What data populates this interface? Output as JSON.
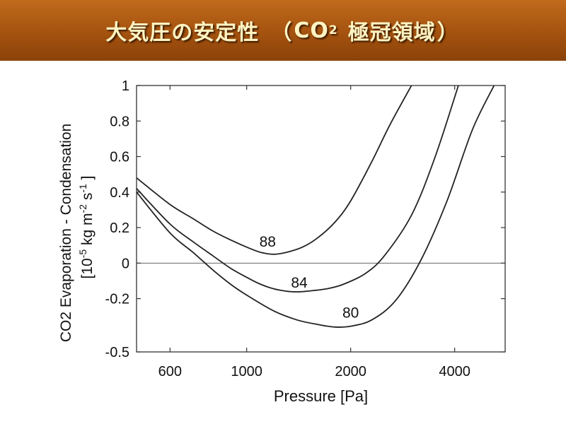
{
  "header": {
    "title_main": "大気圧の安定性",
    "title_paren_open": "（",
    "title_co": "CO",
    "title_sub": "2",
    "title_rest": "極冠領域",
    "title_paren_close": "）"
  },
  "colors": {
    "banner": "#a4520f",
    "title_text": "#fff3c2",
    "curve": "#222222"
  },
  "chart_data": {
    "type": "line",
    "xscale": "log",
    "xlim": [
      480,
      5600
    ],
    "ylim": [
      -0.5,
      1
    ],
    "xlabel": "Pressure [Pa]",
    "ylabel_line1": "CO2 Evaporation - Condensation",
    "ylabel_line2_parts": [
      "[10",
      "-5",
      " kg m",
      "-2",
      " s",
      "-1",
      " ]"
    ],
    "xticks": [
      {
        "value": 600,
        "label": "600"
      },
      {
        "value": 1000,
        "label": "1000"
      },
      {
        "value": 2000,
        "label": "2000"
      },
      {
        "value": 4000,
        "label": "4000"
      }
    ],
    "yticks": [
      {
        "value": 1,
        "label": "1"
      },
      {
        "value": 0.8,
        "label": "0.8"
      },
      {
        "value": 0.6,
        "label": "0.6"
      },
      {
        "value": 0.4,
        "label": "0.4"
      },
      {
        "value": 0.2,
        "label": "0.2"
      },
      {
        "value": 0,
        "label": "0"
      },
      {
        "value": -0.2,
        "label": "-0.2"
      },
      {
        "value": -0.5,
        "label": "-0.5"
      }
    ],
    "zero_line": true,
    "series": [
      {
        "name": "88",
        "label_at": [
          1150,
          0.12
        ],
        "x": [
          480,
          600,
          700,
          800,
          900,
          1000,
          1100,
          1200,
          1300,
          1450,
          1600,
          1800,
          2000,
          2300,
          2600,
          3000
        ],
        "y": [
          0.48,
          0.33,
          0.25,
          0.18,
          0.13,
          0.09,
          0.06,
          0.05,
          0.06,
          0.09,
          0.14,
          0.23,
          0.35,
          0.57,
          0.78,
          1.0
        ]
      },
      {
        "name": "84",
        "label_at": [
          1420,
          -0.11
        ],
        "x": [
          480,
          600,
          700,
          800,
          900,
          1000,
          1100,
          1200,
          1300,
          1400,
          1500,
          1700,
          1900,
          2200,
          2500,
          3000,
          3500,
          4100
        ],
        "y": [
          0.42,
          0.22,
          0.12,
          0.04,
          -0.03,
          -0.08,
          -0.12,
          -0.145,
          -0.158,
          -0.162,
          -0.158,
          -0.145,
          -0.12,
          -0.06,
          0.04,
          0.27,
          0.59,
          1.0
        ]
      },
      {
        "name": "80",
        "label_at": [
          2000,
          -0.28
        ],
        "x": [
          480,
          600,
          700,
          800,
          900,
          1000,
          1200,
          1400,
          1600,
          1800,
          2000,
          2300,
          2700,
          3200,
          3800,
          4500,
          5200
        ],
        "y": [
          0.4,
          0.17,
          0.06,
          -0.04,
          -0.12,
          -0.18,
          -0.27,
          -0.32,
          -0.345,
          -0.36,
          -0.355,
          -0.32,
          -0.21,
          0.02,
          0.35,
          0.75,
          1.0
        ]
      }
    ]
  }
}
